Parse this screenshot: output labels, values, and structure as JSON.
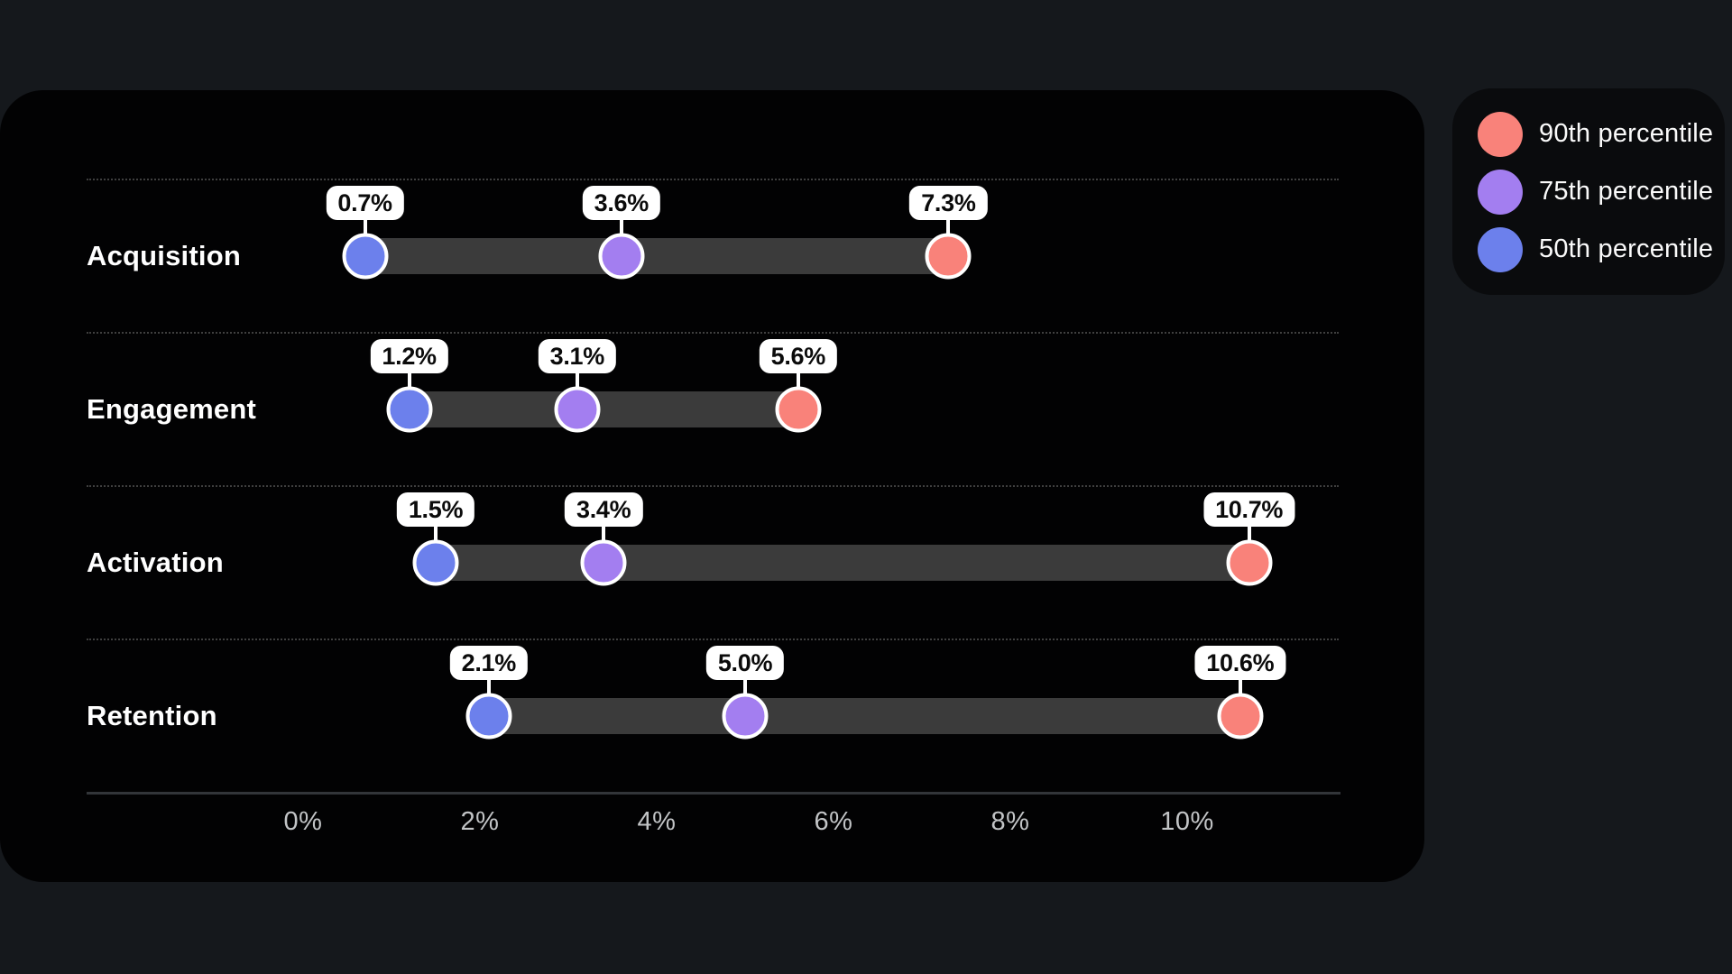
{
  "page": {
    "background_color": "#15181c",
    "card_color": "#020203",
    "legend_card_color": "#0a0b0d"
  },
  "legend": {
    "items": [
      {
        "key": "p90",
        "label": "90th percentile",
        "color": "#f9827a"
      },
      {
        "key": "p75",
        "label": "75th percentile",
        "color": "#a37ef0"
      },
      {
        "key": "p50",
        "label": "50th percentile",
        "color": "#6c80ec"
      }
    ]
  },
  "chart_data": {
    "type": "dumbbell",
    "title": "",
    "categories": [
      "Acquisition",
      "Engagement",
      "Activation",
      "Retention"
    ],
    "series": [
      {
        "key": "p50",
        "name": "50th percentile",
        "color": "#6c80ec",
        "values": [
          0.7,
          1.2,
          1.5,
          2.1
        ]
      },
      {
        "key": "p75",
        "name": "75th percentile",
        "color": "#a37ef0",
        "values": [
          3.6,
          3.1,
          3.4,
          5.0
        ]
      },
      {
        "key": "p90",
        "name": "90th percentile",
        "color": "#f9827a",
        "values": [
          7.3,
          5.6,
          10.7,
          10.6
        ]
      }
    ],
    "point_labels": [
      [
        "0.7%",
        "3.6%",
        "7.3%"
      ],
      [
        "1.2%",
        "3.1%",
        "5.6%"
      ],
      [
        "1.5%",
        "3.4%",
        "10.7%"
      ],
      [
        "2.1%",
        "5.0%",
        "10.6%"
      ]
    ],
    "xlabel": "",
    "ylabel": "",
    "x_ticks": [
      "0%",
      "2%",
      "4%",
      "6%",
      "8%",
      "10%"
    ],
    "x_tick_values": [
      0,
      2,
      4,
      6,
      8,
      10
    ],
    "xlim": [
      0,
      10
    ],
    "unit": "%",
    "grid": false,
    "legend_position": "top-right",
    "bar_color": "#3b3b3b",
    "callout_style": "white-rounded-label-above-dot"
  }
}
